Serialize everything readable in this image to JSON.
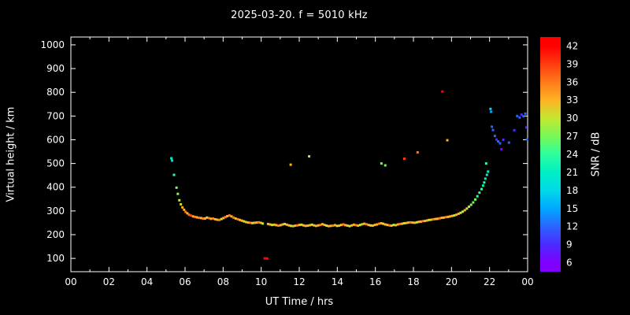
{
  "title": "2025-03-20. f = 5010 kHz",
  "colors": {
    "background": "#000000",
    "frame": "#ffffff",
    "text": "#ffffff"
  },
  "x_axis": {
    "label": "UT Time / hrs",
    "min": 0,
    "max": 24,
    "ticks": [
      {
        "v": 0,
        "l": "00"
      },
      {
        "v": 2,
        "l": "02"
      },
      {
        "v": 4,
        "l": "04"
      },
      {
        "v": 6,
        "l": "06"
      },
      {
        "v": 8,
        "l": "08"
      },
      {
        "v": 10,
        "l": "10"
      },
      {
        "v": 12,
        "l": "12"
      },
      {
        "v": 14,
        "l": "14"
      },
      {
        "v": 16,
        "l": "16"
      },
      {
        "v": 18,
        "l": "18"
      },
      {
        "v": 20,
        "l": "20"
      },
      {
        "v": 22,
        "l": "22"
      },
      {
        "v": 24,
        "l": "00"
      }
    ],
    "minor_ticks": [
      1,
      3,
      5,
      7,
      9,
      11,
      13,
      15,
      17,
      19,
      21,
      23
    ]
  },
  "y_axis": {
    "label": "Virtual height / km",
    "min": 44,
    "max": 1033,
    "ticks": [
      {
        "v": 100,
        "l": "100"
      },
      {
        "v": 200,
        "l": "200"
      },
      {
        "v": 300,
        "l": "300"
      },
      {
        "v": 400,
        "l": "400"
      },
      {
        "v": 500,
        "l": "500"
      },
      {
        "v": 600,
        "l": "600"
      },
      {
        "v": 700,
        "l": "700"
      },
      {
        "v": 800,
        "l": "800"
      },
      {
        "v": 900,
        "l": "900"
      },
      {
        "v": 1000,
        "l": "1000"
      }
    ]
  },
  "colorbar": {
    "label": "SNR / dB",
    "min": 4.5,
    "max": 43.5,
    "ticks": [
      6,
      9,
      12,
      15,
      18,
      21,
      24,
      27,
      30,
      33,
      36,
      39,
      42
    ],
    "stops": [
      {
        "v": 6,
        "c": "#7f00ff"
      },
      {
        "v": 9,
        "c": "#4b2aff"
      },
      {
        "v": 12,
        "c": "#2a64ff"
      },
      {
        "v": 15,
        "c": "#00a8ff"
      },
      {
        "v": 18,
        "c": "#00d9e8"
      },
      {
        "v": 21,
        "c": "#00eec3"
      },
      {
        "v": 24,
        "c": "#2dff9e"
      },
      {
        "v": 27,
        "c": "#77f857"
      },
      {
        "v": 30,
        "c": "#c3e831"
      },
      {
        "v": 33,
        "c": "#ffb224"
      },
      {
        "v": 36,
        "c": "#ff7a1a"
      },
      {
        "v": 39,
        "c": "#ff3c0f"
      },
      {
        "v": 42,
        "c": "#ff0000"
      }
    ]
  },
  "chart_data": {
    "type": "scatter",
    "title": "2025-03-20. f = 5010 kHz",
    "xlabel": "UT Time / hrs",
    "ylabel": "Virtual height / km",
    "zlabel": "SNR / dB",
    "xlim": [
      0,
      24
    ],
    "ylim": [
      44,
      1033
    ],
    "point_size": 3,
    "points_format": [
      "ut_hours",
      "virtual_height_km",
      "snr_db"
    ],
    "points": [
      [
        5.28,
        522,
        21
      ],
      [
        5.32,
        512,
        18
      ],
      [
        5.42,
        452,
        24
      ],
      [
        5.55,
        398,
        27
      ],
      [
        5.62,
        372,
        27
      ],
      [
        5.7,
        345,
        30
      ],
      [
        5.78,
        328,
        30
      ],
      [
        5.86,
        315,
        33
      ],
      [
        5.95,
        305,
        33
      ],
      [
        6.03,
        296,
        36
      ],
      [
        6.12,
        290,
        33
      ],
      [
        6.21,
        284,
        36
      ],
      [
        6.3,
        281,
        39
      ],
      [
        6.42,
        277,
        33
      ],
      [
        6.52,
        275,
        36
      ],
      [
        6.63,
        273,
        33
      ],
      [
        6.74,
        271,
        36
      ],
      [
        6.85,
        270,
        33
      ],
      [
        6.95,
        268,
        36
      ],
      [
        7.05,
        268,
        33
      ],
      [
        7.15,
        272,
        30
      ],
      [
        7.25,
        270,
        36
      ],
      [
        7.36,
        267,
        33
      ],
      [
        7.47,
        268,
        36
      ],
      [
        7.58,
        265,
        33
      ],
      [
        7.69,
        263,
        33
      ],
      [
        7.8,
        262,
        36
      ],
      [
        7.91,
        266,
        30
      ],
      [
        8.02,
        270,
        33
      ],
      [
        8.12,
        274,
        36
      ],
      [
        8.22,
        278,
        33
      ],
      [
        8.33,
        281,
        36
      ],
      [
        8.44,
        277,
        33
      ],
      [
        8.55,
        272,
        36
      ],
      [
        8.66,
        268,
        33
      ],
      [
        8.77,
        265,
        36
      ],
      [
        8.88,
        262,
        33
      ],
      [
        8.99,
        259,
        33
      ],
      [
        9.1,
        256,
        30
      ],
      [
        9.21,
        253,
        33
      ],
      [
        9.32,
        251,
        33
      ],
      [
        9.43,
        250,
        36
      ],
      [
        9.54,
        249,
        30
      ],
      [
        9.65,
        250,
        33
      ],
      [
        9.76,
        251,
        33
      ],
      [
        9.87,
        252,
        36
      ],
      [
        9.98,
        250,
        33
      ],
      [
        10.08,
        247,
        30
      ],
      [
        10.18,
        100,
        42
      ],
      [
        10.26,
        100,
        42
      ],
      [
        10.32,
        99,
        42
      ],
      [
        10.36,
        245,
        33
      ],
      [
        10.47,
        243,
        33
      ],
      [
        10.58,
        241,
        30
      ],
      [
        10.69,
        242,
        33
      ],
      [
        10.8,
        240,
        33
      ],
      [
        10.91,
        238,
        36
      ],
      [
        11.02,
        240,
        33
      ],
      [
        11.13,
        243,
        33
      ],
      [
        11.24,
        245,
        30
      ],
      [
        11.35,
        242,
        33
      ],
      [
        11.46,
        239,
        33
      ],
      [
        11.55,
        495,
        33
      ],
      [
        11.57,
        237,
        30
      ],
      [
        11.68,
        236,
        33
      ],
      [
        11.79,
        238,
        33
      ],
      [
        11.9,
        239,
        36
      ],
      [
        12.01,
        241,
        33
      ],
      [
        12.12,
        242,
        30
      ],
      [
        12.23,
        239,
        33
      ],
      [
        12.34,
        237,
        33
      ],
      [
        12.52,
        530,
        30
      ],
      [
        12.45,
        238,
        33
      ],
      [
        12.56,
        240,
        33
      ],
      [
        12.67,
        242,
        30
      ],
      [
        12.78,
        239,
        33
      ],
      [
        12.89,
        237,
        33
      ],
      [
        13.0,
        239,
        33
      ],
      [
        13.11,
        241,
        36
      ],
      [
        13.22,
        244,
        33
      ],
      [
        13.33,
        241,
        33
      ],
      [
        13.44,
        238,
        30
      ],
      [
        13.55,
        236,
        33
      ],
      [
        13.66,
        237,
        33
      ],
      [
        13.77,
        238,
        36
      ],
      [
        13.88,
        240,
        33
      ],
      [
        13.99,
        237,
        30
      ],
      [
        14.1,
        238,
        33
      ],
      [
        14.21,
        241,
        33
      ],
      [
        14.32,
        243,
        36
      ],
      [
        14.43,
        240,
        33
      ],
      [
        14.54,
        238,
        33
      ],
      [
        14.65,
        236,
        30
      ],
      [
        14.76,
        239,
        33
      ],
      [
        14.87,
        242,
        33
      ],
      [
        14.98,
        240,
        36
      ],
      [
        15.09,
        238,
        33
      ],
      [
        15.2,
        241,
        30
      ],
      [
        15.31,
        244,
        33
      ],
      [
        15.42,
        246,
        33
      ],
      [
        15.53,
        244,
        36
      ],
      [
        15.64,
        241,
        33
      ],
      [
        15.75,
        239,
        30
      ],
      [
        15.86,
        238,
        33
      ],
      [
        15.97,
        241,
        33
      ],
      [
        16.08,
        243,
        33
      ],
      [
        16.19,
        246,
        36
      ],
      [
        16.3,
        248,
        33
      ],
      [
        16.32,
        500,
        27
      ],
      [
        16.52,
        492,
        27
      ],
      [
        16.41,
        246,
        30
      ],
      [
        16.52,
        243,
        33
      ],
      [
        16.63,
        241,
        33
      ],
      [
        16.74,
        239,
        36
      ],
      [
        16.85,
        238,
        33
      ],
      [
        16.96,
        241,
        30
      ],
      [
        17.07,
        240,
        33
      ],
      [
        17.18,
        243,
        33
      ],
      [
        17.29,
        245,
        36
      ],
      [
        17.4,
        246,
        33
      ],
      [
        17.52,
        520,
        39
      ],
      [
        17.51,
        248,
        30
      ],
      [
        17.62,
        249,
        33
      ],
      [
        17.73,
        251,
        33
      ],
      [
        17.84,
        252,
        36
      ],
      [
        17.95,
        251,
        33
      ],
      [
        18.06,
        250,
        33
      ],
      [
        18.17,
        252,
        30
      ],
      [
        18.22,
        547,
        36
      ],
      [
        18.28,
        254,
        33
      ],
      [
        18.39,
        255,
        33
      ],
      [
        18.5,
        257,
        36
      ],
      [
        18.61,
        258,
        33
      ],
      [
        18.72,
        260,
        33
      ],
      [
        18.83,
        262,
        30
      ],
      [
        18.94,
        263,
        33
      ],
      [
        19.05,
        265,
        36
      ],
      [
        19.16,
        266,
        33
      ],
      [
        19.27,
        267,
        33
      ],
      [
        19.38,
        269,
        36
      ],
      [
        19.52,
        803,
        42
      ],
      [
        19.49,
        271,
        33
      ],
      [
        19.6,
        272,
        33
      ],
      [
        19.78,
        598,
        33
      ],
      [
        19.71,
        274,
        36
      ],
      [
        19.82,
        275,
        33
      ],
      [
        19.93,
        277,
        33
      ],
      [
        20.04,
        279,
        33
      ],
      [
        20.15,
        281,
        30
      ],
      [
        20.26,
        284,
        33
      ],
      [
        20.37,
        288,
        33
      ],
      [
        20.48,
        292,
        30
      ],
      [
        20.59,
        297,
        30
      ],
      [
        20.7,
        303,
        33
      ],
      [
        20.81,
        310,
        30
      ],
      [
        20.92,
        318,
        30
      ],
      [
        21.03,
        326,
        27
      ],
      [
        21.14,
        336,
        27
      ],
      [
        21.25,
        348,
        27
      ],
      [
        21.36,
        362,
        24
      ],
      [
        21.47,
        377,
        24
      ],
      [
        21.58,
        392,
        24
      ],
      [
        21.66,
        407,
        21
      ],
      [
        21.72,
        420,
        24
      ],
      [
        21.78,
        436,
        21
      ],
      [
        21.82,
        500,
        24
      ],
      [
        21.86,
        452,
        21
      ],
      [
        21.92,
        466,
        21
      ],
      [
        22.05,
        730,
        18
      ],
      [
        22.08,
        718,
        15
      ],
      [
        22.12,
        655,
        12
      ],
      [
        22.18,
        641,
        12
      ],
      [
        22.28,
        616,
        12
      ],
      [
        22.36,
        601,
        9
      ],
      [
        22.45,
        593,
        12
      ],
      [
        22.55,
        585,
        12
      ],
      [
        22.62,
        560,
        6
      ],
      [
        22.72,
        600,
        9
      ],
      [
        23.02,
        588,
        12
      ],
      [
        23.3,
        640,
        9
      ],
      [
        23.45,
        700,
        12
      ],
      [
        23.58,
        694,
        12
      ],
      [
        23.68,
        706,
        9
      ],
      [
        23.78,
        699,
        12
      ],
      [
        23.88,
        710,
        12
      ],
      [
        23.93,
        652,
        9
      ],
      [
        23.97,
        602,
        12
      ]
    ]
  }
}
